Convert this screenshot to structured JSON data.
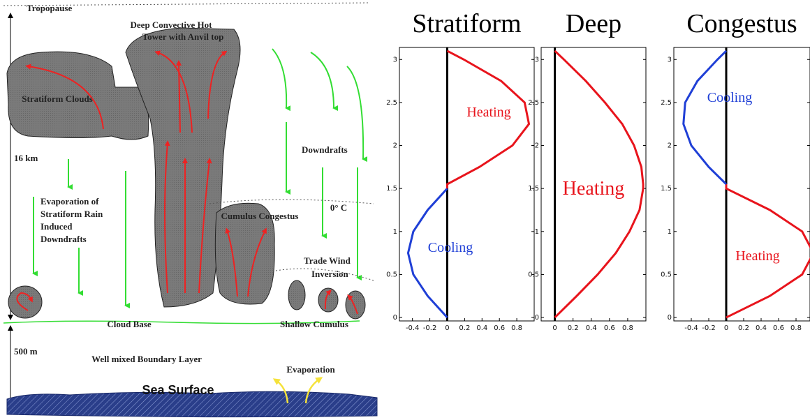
{
  "diagram": {
    "labels": [
      {
        "text": "Tropopause"
      },
      {
        "text": "Deep Convective Hot"
      },
      {
        "text": "Tower with Anvil top"
      },
      {
        "text": "Stratiform Clouds"
      },
      {
        "text": "16 km"
      },
      {
        "text": "Downdrafts"
      },
      {
        "text": "Evaporation of"
      },
      {
        "text": "Stratiform Rain"
      },
      {
        "text": "Induced"
      },
      {
        "text": "Downdrafts"
      },
      {
        "text": "0° C"
      },
      {
        "text": "Cumulus Congestus"
      },
      {
        "text": "Trade Wind"
      },
      {
        "text": "Inversion"
      },
      {
        "text": "Cloud Base"
      },
      {
        "text": "Shallow Cumulus"
      },
      {
        "text": "500 m"
      },
      {
        "text": "Well mixed Boundary Layer"
      },
      {
        "text": "Evaporation"
      },
      {
        "text": "Sea Surface"
      }
    ]
  },
  "panels": [
    {
      "title": "Stratiform",
      "xlim": [
        -0.55,
        1
      ],
      "ylim": [
        -0.04,
        3.14
      ],
      "xticks": [
        -0.4,
        -0.2,
        0,
        0.2,
        0.4,
        0.6,
        0.8
      ],
      "yticks": [
        0,
        0.5,
        1,
        1.5,
        2,
        2.5,
        3
      ],
      "heating_color": "#e8141c",
      "cooling_color": "#1f3fd6",
      "y": [
        0,
        0.25,
        0.5,
        0.75,
        1,
        1.25,
        1.5,
        1.55,
        1.75,
        2,
        2.25,
        2.5,
        2.75,
        3,
        3.1
      ],
      "x": [
        0,
        -0.225,
        -0.39,
        -0.45,
        -0.39,
        -0.225,
        0,
        0,
        0.37,
        0.75,
        0.94,
        0.89,
        0.62,
        0.19,
        0
      ],
      "annotations": [
        "Heating",
        "Cooling"
      ]
    },
    {
      "title": "Deep",
      "xlim": [
        -0.15,
        1
      ],
      "ylim": [
        -0.04,
        3.14
      ],
      "xticks": [
        0,
        0.2,
        0.4,
        0.6,
        0.8
      ],
      "yticks": [
        0,
        0.5,
        1,
        1.5,
        2,
        2.5,
        3
      ],
      "heating_color": "#e8141c",
      "cooling_color": "#1f3fd6",
      "y": [
        0,
        0.25,
        0.5,
        0.75,
        1,
        1.25,
        1.5,
        1.55,
        1.75,
        2,
        2.25,
        2.5,
        2.75,
        3,
        3.1
      ],
      "x": [
        0,
        0.24,
        0.47,
        0.67,
        0.82,
        0.93,
        0.97,
        0.97,
        0.95,
        0.87,
        0.74,
        0.55,
        0.34,
        0.1,
        0
      ],
      "annotations": [
        "Heating"
      ]
    },
    {
      "title": "Congestus",
      "xlim": [
        -0.6,
        0.96
      ],
      "ylim": [
        -0.04,
        3.14
      ],
      "xticks": [
        -0.4,
        -0.2,
        0,
        0.2,
        0.4,
        0.6,
        0.8
      ],
      "yticks": [
        0,
        0.5,
        1,
        1.5,
        2,
        2.5,
        3
      ],
      "heating_color": "#e8141c",
      "cooling_color": "#1f3fd6",
      "y": [
        0,
        0.25,
        0.5,
        0.75,
        1,
        1.25,
        1.5,
        1.55,
        1.75,
        2,
        2.25,
        2.5,
        2.75,
        3,
        3.1
      ],
      "x": [
        0,
        0.5,
        0.87,
        1.0,
        0.87,
        0.5,
        0,
        0,
        -0.2,
        -0.4,
        -0.49,
        -0.47,
        -0.33,
        -0.1,
        0
      ],
      "annotations": [
        "Cooling",
        "Heating"
      ]
    }
  ]
}
